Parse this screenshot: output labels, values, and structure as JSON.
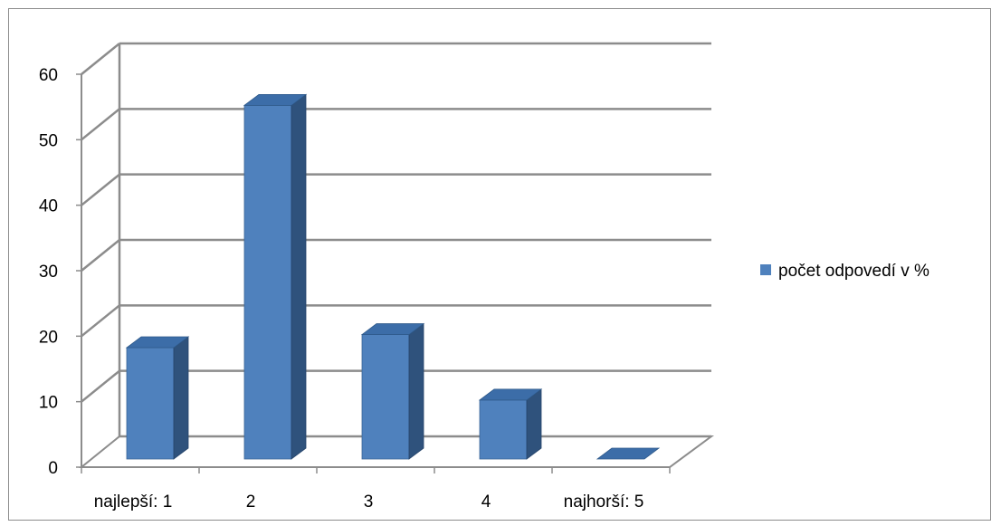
{
  "chart_data": {
    "type": "bar",
    "categories": [
      "najlepší: 1",
      "2",
      "3",
      "4",
      "najhorší: 5"
    ],
    "series": [
      {
        "name": "počet  odpovedí  v %",
        "values": [
          17,
          54,
          19,
          9,
          0
        ]
      }
    ],
    "title": "",
    "xlabel": "",
    "ylabel": "",
    "ylim": [
      0,
      60
    ],
    "yticks": [
      0,
      10,
      20,
      30,
      40,
      50,
      60
    ],
    "grid": true,
    "legend_position": "right",
    "three_d": true,
    "colors": {
      "bar_front": "#4f81bd",
      "bar_side": "#2f527c",
      "bar_top": "#3c6da8",
      "grid": "#8c8c8c"
    }
  }
}
